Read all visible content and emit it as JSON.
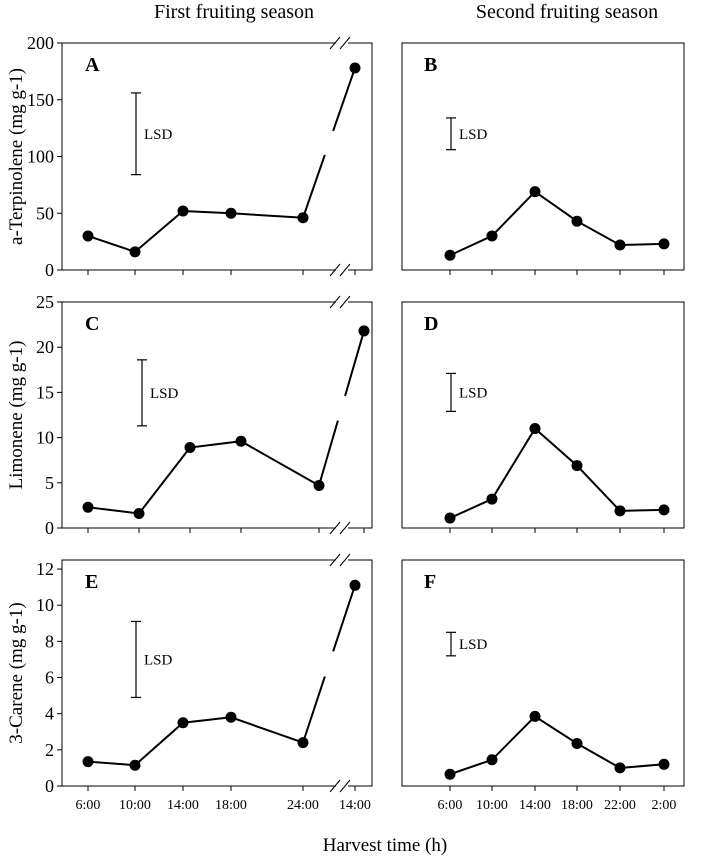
{
  "figure": {
    "col_titles": [
      "First fruiting season",
      "Second fruiting season"
    ],
    "xlabel": "Harvest time (h)"
  },
  "chart_data": [
    {
      "panel": "A",
      "type": "line",
      "season": "First fruiting season",
      "ylabel": "a-Terpinolene (mg g-1)",
      "ylim": [
        0,
        200
      ],
      "yticks": [
        0,
        50,
        100,
        150,
        200
      ],
      "categories": [
        "6:00",
        "10:00",
        "14:00",
        "18:00",
        "24:00",
        "14:00"
      ],
      "x_tick_labels_shown": false,
      "axis_break": true,
      "series": [
        {
          "values": [
            30,
            16,
            52,
            50,
            46,
            178
          ]
        }
      ],
      "lsd": {
        "label": "LSD",
        "low": 84,
        "high": 156
      }
    },
    {
      "panel": "B",
      "type": "line",
      "season": "Second fruiting season",
      "ylim": [
        0,
        200
      ],
      "categories": [
        "6:00",
        "10:00",
        "14:00",
        "18:00",
        "22:00",
        "2:00"
      ],
      "x_tick_labels_shown": false,
      "axis_break": false,
      "series": [
        {
          "values": [
            13,
            30,
            69,
            43,
            22,
            23
          ]
        }
      ],
      "lsd": {
        "label": "LSD",
        "low": 106,
        "high": 134
      }
    },
    {
      "panel": "C",
      "type": "line",
      "season": "First fruiting season",
      "ylabel": "Limonene (mg g-1)",
      "ylim": [
        0,
        25
      ],
      "yticks": [
        0,
        5,
        10,
        15,
        20,
        25
      ],
      "categories": [
        "6:00",
        "10:00",
        "14:00",
        "18:00",
        "24:00",
        "14:00"
      ],
      "x_tick_labels_shown": false,
      "axis_break": true,
      "series": [
        {
          "values": [
            2.3,
            1.6,
            8.9,
            9.6,
            4.7,
            21.8
          ]
        }
      ],
      "lsd": {
        "label": "LSD",
        "low": 11.3,
        "high": 18.6
      }
    },
    {
      "panel": "D",
      "type": "line",
      "season": "Second fruiting season",
      "ylim": [
        0,
        25
      ],
      "categories": [
        "6:00",
        "10:00",
        "14:00",
        "18:00",
        "22:00",
        "2:00"
      ],
      "x_tick_labels_shown": false,
      "axis_break": false,
      "series": [
        {
          "values": [
            1.1,
            3.2,
            11.0,
            6.9,
            1.9,
            2.0
          ]
        }
      ],
      "lsd": {
        "label": "LSD",
        "low": 12.9,
        "high": 17.1
      }
    },
    {
      "panel": "E",
      "type": "line",
      "season": "First fruiting season",
      "ylabel": "3-Carene (mg g-1)",
      "ylim": [
        0,
        12.5
      ],
      "yticks": [
        0,
        2,
        4,
        6,
        8,
        10,
        12
      ],
      "categories": [
        "6:00",
        "10:00",
        "14:00",
        "18:00",
        "24:00",
        "14:00"
      ],
      "x_tick_labels_shown": true,
      "axis_break": true,
      "series": [
        {
          "values": [
            1.35,
            1.15,
            3.5,
            3.8,
            2.4,
            11.1
          ]
        }
      ],
      "lsd": {
        "label": "LSD",
        "low": 4.9,
        "high": 9.1
      }
    },
    {
      "panel": "F",
      "type": "line",
      "season": "Second fruiting season",
      "ylim": [
        0,
        12.5
      ],
      "categories": [
        "6:00",
        "10:00",
        "14:00",
        "18:00",
        "22:00",
        "2:00"
      ],
      "x_tick_labels_shown": true,
      "axis_break": false,
      "series": [
        {
          "values": [
            0.65,
            1.45,
            3.85,
            2.35,
            1.0,
            1.2
          ]
        }
      ],
      "lsd": {
        "label": "LSD",
        "low": 7.2,
        "high": 8.5
      }
    }
  ],
  "colors": {
    "ink": "#000000",
    "background": "#ffffff"
  }
}
